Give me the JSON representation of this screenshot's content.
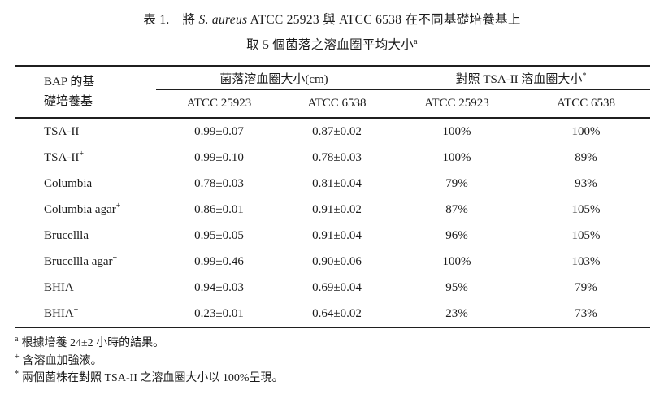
{
  "title": {
    "label": "表 1.",
    "line1_pre": "將 ",
    "line1_italic": "S. aureus",
    "line1_post": " ATCC 25923 與 ATCC 6538 在不同基礎培養基上",
    "line2": "取 5 個菌落之溶血圈平均大小",
    "line2_sup": "a"
  },
  "table": {
    "header": {
      "row_label_line1": "BAP 的基",
      "row_label_line2": "礎培養基",
      "group1": "菌落溶血圈大小(cm)",
      "group2": "對照 TSA-II 溶血圈大小",
      "group2_sup": "*",
      "subheaders": [
        "ATCC 25923",
        "ATCC 6538",
        "ATCC 25923",
        "ATCC 6538"
      ]
    },
    "rows": [
      {
        "label": "TSA-II",
        "sup": "",
        "values": [
          "0.99±0.07",
          "0.87±0.02",
          "100%",
          "100%"
        ]
      },
      {
        "label": "TSA-II",
        "sup": "+",
        "values": [
          "0.99±0.10",
          "0.78±0.03",
          "100%",
          "89%"
        ]
      },
      {
        "label": "Columbia",
        "sup": "",
        "values": [
          "0.78±0.03",
          "0.81±0.04",
          "79%",
          "93%"
        ]
      },
      {
        "label": "Columbia agar",
        "sup": "+",
        "values": [
          "0.86±0.01",
          "0.91±0.02",
          "87%",
          "105%"
        ]
      },
      {
        "label": "Brucellla",
        "sup": "",
        "values": [
          "0.95±0.05",
          "0.91±0.04",
          "96%",
          "105%"
        ]
      },
      {
        "label": "Brucellla agar",
        "sup": "+",
        "values": [
          "0.99±0.46",
          "0.90±0.06",
          "100%",
          "103%"
        ]
      },
      {
        "label": "BHIA",
        "sup": "",
        "values": [
          "0.94±0.03",
          "0.69±0.04",
          "95%",
          "79%"
        ]
      },
      {
        "label": "BHIA",
        "sup": "+",
        "values": [
          "0.23±0.01",
          "0.64±0.02",
          "23%",
          "73%"
        ]
      }
    ]
  },
  "footnotes": [
    {
      "sup": "a",
      "text": "根據培養 24±2 小時的結果。"
    },
    {
      "sup": "+",
      "text": "含溶血加強液。"
    },
    {
      "sup": "*",
      "text": "兩個菌株在對照 TSA-II 之溶血圈大小以 100%呈現。"
    }
  ],
  "colors": {
    "text": "#1b1b1b",
    "rule": "#1f1f1f",
    "background": "#ffffff"
  }
}
